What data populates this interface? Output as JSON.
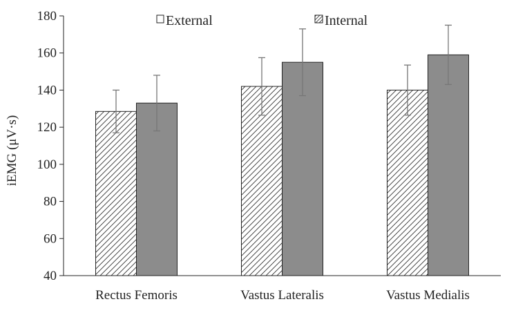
{
  "chart_data": {
    "type": "bar",
    "title": "",
    "xlabel": "",
    "ylabel": "iEMG (μV·s)",
    "ylim": [
      40,
      180
    ],
    "yticks": [
      40,
      60,
      80,
      100,
      120,
      140,
      160,
      180
    ],
    "categories": [
      "Rectus Femoris",
      "Vastus Lateralis",
      "Vastus Medialis"
    ],
    "series": [
      {
        "name": "External",
        "values": [
          128.5,
          142,
          140
        ],
        "errors": [
          11.5,
          15.5,
          13.5
        ],
        "pattern": "hatched",
        "color": "#ffffff"
      },
      {
        "name": "Internal",
        "values": [
          133,
          155,
          159
        ],
        "errors": [
          15,
          18,
          16
        ],
        "pattern": "solid",
        "color": "#8c8c8c"
      }
    ],
    "legend": {
      "position": "top-center",
      "orientation": "horizontal"
    },
    "grid": false
  },
  "colors": {
    "axis": "#222222",
    "bar_outline": "#222222",
    "error_bar": "#777777",
    "hatch_line": "#333333"
  }
}
